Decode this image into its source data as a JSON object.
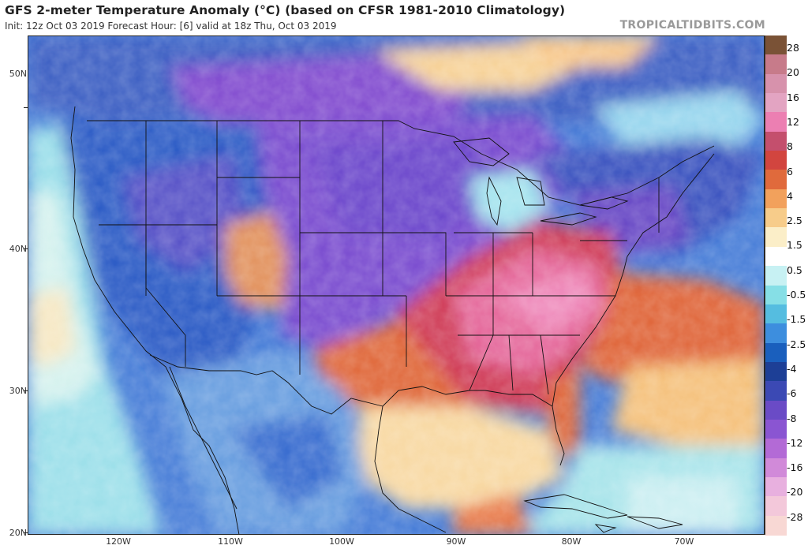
{
  "header": {
    "title": "GFS 2-meter Temperature Anomaly (°C) (based on CFSR 1981-2010 Climatology)",
    "subtitle": "Init: 12z Oct 03 2019   Forecast Hour: [6]   valid at 18z Thu, Oct 03 2019",
    "brand": "TROPICALTIDBITS.COM"
  },
  "lat_labels": [
    "50N",
    "40N",
    "30N",
    "20N"
  ],
  "lon_labels": [
    "120W",
    "110W",
    "100W",
    "90W",
    "80W",
    "70W"
  ],
  "colorbar": {
    "labels": [
      "28",
      "20",
      "16",
      "12",
      "8",
      "6",
      "4",
      "2.5",
      "1.5",
      "0.5",
      "-0.5",
      "-1.5",
      "-2.5",
      "-4",
      "-6",
      "-8",
      "-12",
      "-16",
      "-20",
      "-28"
    ],
    "colors": [
      "#7a5236",
      "#c77b8a",
      "#d792ac",
      "#e3a4c2",
      "#ec7fb2",
      "#c44f6d",
      "#d2453f",
      "#e06a3c",
      "#f2a15c",
      "#f7cc8a",
      "#fbeec8",
      "#ffffff",
      "#c7f1f3",
      "#86dfe6",
      "#55bde0",
      "#3d8ede",
      "#1a5fbd",
      "#1d3f96",
      "#3b49b4",
      "#6a4bc6",
      "#8a55d2",
      "#b36ad6",
      "#d18ad9",
      "#e8b0df",
      "#f3c8da",
      "#f8d8d4"
    ]
  }
}
